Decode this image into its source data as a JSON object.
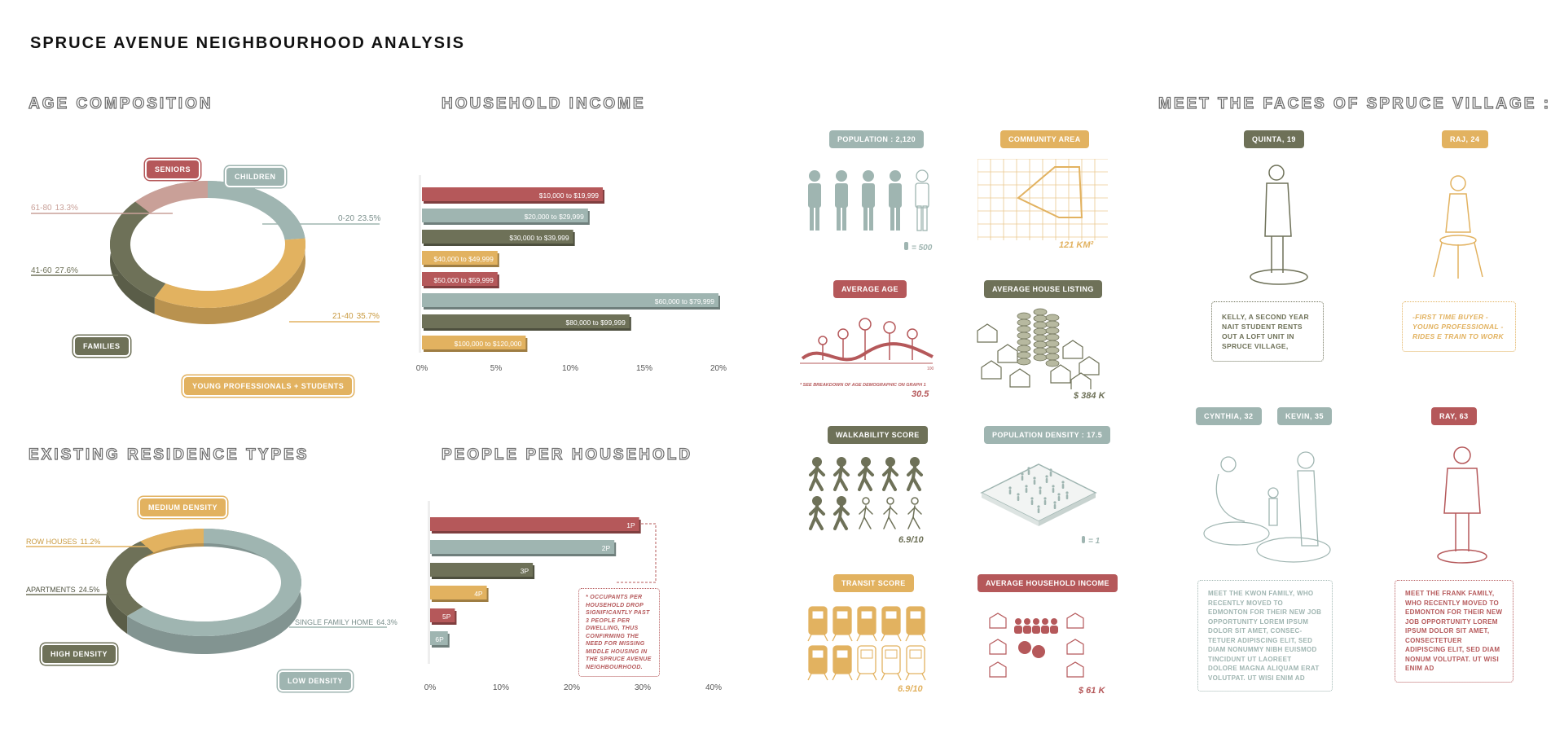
{
  "title": "SPRUCE AVENUE NEIGHBOURHOOD ANALYSIS",
  "colors": {
    "red": "#b5585a",
    "teal": "#9fb5b1",
    "olive": "#6e7158",
    "gold": "#e2b260",
    "rose": "#c9a098"
  },
  "sections": {
    "age": "AGE COMPOSITION",
    "income": "HOUSEHOLD INCOME",
    "faces": "MEET THE FACES OF SPRUCE VILLAGE :",
    "residence": "EXISTING RESIDENCE TYPES",
    "people": "PEOPLE PER HOUSEHOLD"
  },
  "chart_data": [
    {
      "type": "pie",
      "name": "age",
      "slices": [
        {
          "label": "0-20",
          "value": 23.5,
          "color": "#9fb5b1"
        },
        {
          "label": "21-40",
          "value": 35.7,
          "color": "#e2b260"
        },
        {
          "label": "41-60",
          "value": 27.6,
          "color": "#6e7158"
        },
        {
          "label": "61-80",
          "value": 13.3,
          "color": "#c9a098"
        }
      ],
      "slice_text": [
        "0-20",
        "23.5%",
        "21-40",
        "35.7%",
        "41-60",
        "27.6%",
        "61-80",
        "13.3%"
      ],
      "tags": [
        "SENIORS",
        "CHILDREN",
        "FAMILIES",
        "YOUNG PROFESSIONALS + STUDENTS"
      ]
    },
    {
      "type": "bar",
      "name": "income",
      "categories": [
        "$10,000 to $19,999",
        "$20,000 to $29,999",
        "$30,000 to $39,999",
        "$40,000 to $49,999",
        "$50,000 to $59,999",
        "$60,000 to $79,999",
        "$80,000 to $99,999",
        "$100,000 to $120,000"
      ],
      "values": [
        12.2,
        11.2,
        10.2,
        5.1,
        5.1,
        20.0,
        14.0,
        7.0
      ],
      "colors": [
        "#b5585a",
        "#9fb5b1",
        "#6e7158",
        "#e2b260",
        "#b5585a",
        "#9fb5b1",
        "#6e7158",
        "#e2b260"
      ],
      "xlim": [
        0,
        20
      ],
      "xticks": [
        "0%",
        "5%",
        "10%",
        "15%",
        "20%"
      ]
    },
    {
      "type": "pie",
      "name": "residence",
      "slices": [
        {
          "label": "SINGLE FAMILY HOME",
          "value": 64.3,
          "color": "#9fb5b1"
        },
        {
          "label": "APARTMENTS",
          "value": 24.5,
          "color": "#6e7158"
        },
        {
          "label": "ROW HOUSES",
          "value": 11.2,
          "color": "#e2b260"
        }
      ],
      "slice_text": [
        "SINGLE FAMILY HOME",
        "64.3%",
        "APARTMENTS",
        "24.5%",
        "ROW HOUSES",
        "11.2%"
      ],
      "tags": [
        "MEDIUM DENSITY",
        "HIGH DENSITY",
        "LOW DENSITY"
      ]
    },
    {
      "type": "bar",
      "name": "people",
      "categories": [
        "1P",
        "2P",
        "3P",
        "4P",
        "5P",
        "6P"
      ],
      "values": [
        29.5,
        26.0,
        14.5,
        8.0,
        3.5,
        2.5
      ],
      "colors": [
        "#b5585a",
        "#9fb5b1",
        "#6e7158",
        "#e2b260",
        "#b5585a",
        "#9fb5b1"
      ],
      "xlim": [
        0,
        40
      ],
      "xticks": [
        "0%",
        "10%",
        "20%",
        "30%",
        "40%"
      ],
      "note": "* OCCUPANTS PER HOUSEHOLD DROP SIGNIFICANTLY PAST 3 PEOPLE PER DWELLING, THUS CONFIRMING THE NEED FOR MISSING MIDDLE HOUSING IN THE SPRUCE AVENUE NEIGHBOURHOOD."
    }
  ],
  "stats": {
    "population": {
      "label": "POPULATION : 2,120",
      "legend": "= 500"
    },
    "community": {
      "label": "COMMUNITY AREA",
      "value": "121 KM²"
    },
    "avg_age": {
      "label": "AVERAGE AGE",
      "note": "* SEE BREAKDOWN OF AGE DEMOGRAPHIC ON GRAPH 1",
      "value": "30.5",
      "axis_end": "100"
    },
    "house_listing": {
      "label": "AVERAGE HOUSE LISTING",
      "value": "$ 384 K"
    },
    "walkability": {
      "label": "WALKABILITY SCORE",
      "value": "6.9/10"
    },
    "density": {
      "label": "POPULATION DENSITY : 17.5",
      "legend": "= 1"
    },
    "transit": {
      "label": "TRANSIT SCORE",
      "value": "6.9/10"
    },
    "household_income": {
      "label": "AVERAGE HOUSEHOLD INCOME",
      "value": "$ 61 K"
    }
  },
  "faces": {
    "quinta": {
      "name": "QUINTA, 19",
      "text": "KELLY, A SECOND YEAR NAIT STUDENT RENTS OUT A LOFT UNIT IN SPRUCE VILLAGE,"
    },
    "raj": {
      "name": "RAJ, 24",
      "text": "-FIRST TIME BUYER -YOUNG PROFESSIONAL -RIDES E TRAIN TO WORK"
    },
    "cynthia": {
      "name": "CYNTHIA, 32"
    },
    "kevin": {
      "name": "KEVIN, 35",
      "text": "MEET THE KWON FAMILY, WHO RECENTLY MOVED TO EDMONTON FOR THEIR NEW JOB OPPORTUNITY LOREM IPSUM DOLOR SIT AMET, CONSEC-TETUER ADIPISCING ELIT, SED DIAM NONUMMY NIBH EUISMOD TINCIDUNT UT LAOREET DOLORE MAGNA ALIQUAM ERAT VOLUTPAT. UT WISI ENIM AD"
    },
    "ray": {
      "name": "RAY, 63",
      "text": "MEET THE FRANK FAMILY, WHO RECENTLY MOVED TO EDMONTON FOR THEIR NEW JOB OPPORTUNITY LOREM IPSUM DOLOR SIT AMET, CONSECTETUER ADIPISCING ELIT, SED DIAM NONUM VOLUTPAT. UT WISI ENIM AD"
    }
  }
}
